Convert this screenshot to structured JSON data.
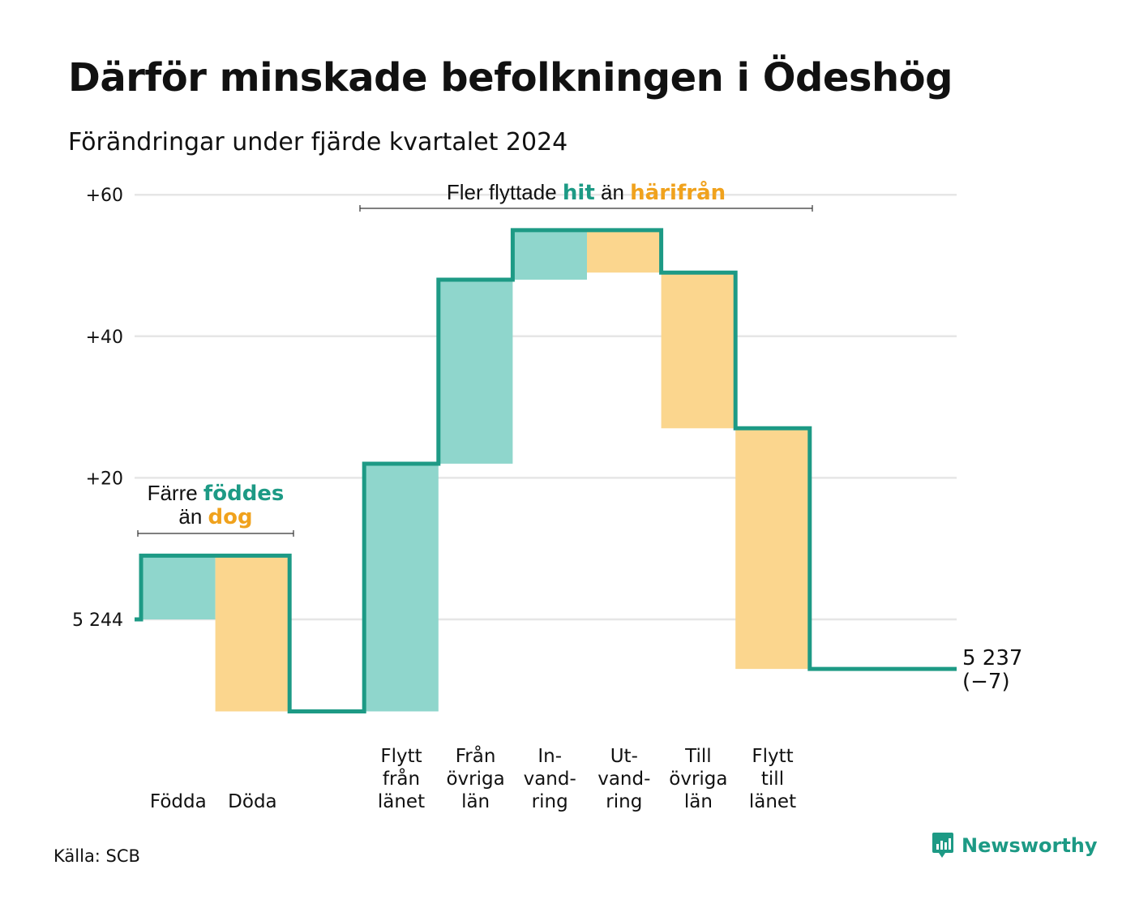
{
  "title": "Därför minskade befolkningen i Ödeshög",
  "subtitle": "Förändringar under fjärde kvartalet 2024",
  "source": "Källa: SCB",
  "brand": {
    "name": "Newsworthy",
    "icon": "newsworthy-logo-icon"
  },
  "colors": {
    "increase_fill": "#8fd6cc",
    "decrease_fill": "#fbd68e",
    "line": "#1d9a85",
    "highlight_increase": "#1d9a85",
    "highlight_decrease": "#f0a21d",
    "grid": "#e6e6e6"
  },
  "chart_data": {
    "type": "waterfall",
    "start_value": 5244,
    "start_label": "5 244",
    "end_value": 5237,
    "end_label": "5 237",
    "end_change_label": "(−7)",
    "y_axis": {
      "ticks": [
        {
          "value": 0,
          "label": "5 244"
        },
        {
          "value": 20,
          "label": "+20"
        },
        {
          "value": 40,
          "label": "+40"
        },
        {
          "value": 60,
          "label": "+60"
        }
      ],
      "range": [
        -13,
        62
      ],
      "grid": true
    },
    "steps": [
      {
        "label": [
          "Födda"
        ],
        "change": 9
      },
      {
        "label": [
          "Döda"
        ],
        "change": -22
      },
      {
        "label": [
          "Flytt",
          "från",
          "länet"
        ],
        "change": 35
      },
      {
        "label": [
          "Från",
          "övriga",
          "län"
        ],
        "change": 26
      },
      {
        "label": [
          "In-",
          "vand-",
          "ring"
        ],
        "change": 7
      },
      {
        "label": [
          "Ut-",
          "vand-",
          "ring"
        ],
        "change": -6
      },
      {
        "label": [
          "Till",
          "övriga",
          "län"
        ],
        "change": -22
      },
      {
        "label": [
          "Flytt",
          "till",
          "länet"
        ],
        "change": -34
      }
    ],
    "annotations": [
      {
        "lines": [
          [
            {
              "text": "Färre "
            },
            {
              "text": "föddes",
              "style": "increase"
            }
          ],
          [
            {
              "text": "än "
            },
            {
              "text": "dog",
              "style": "decrease"
            }
          ]
        ],
        "span_steps": [
          0,
          1
        ]
      },
      {
        "lines": [
          [
            {
              "text": "Fler flyttade "
            },
            {
              "text": "hit",
              "style": "increase"
            },
            {
              "text": " än "
            },
            {
              "text": "härifrån",
              "style": "decrease"
            }
          ]
        ],
        "span_steps": [
          2,
          7
        ]
      }
    ]
  }
}
